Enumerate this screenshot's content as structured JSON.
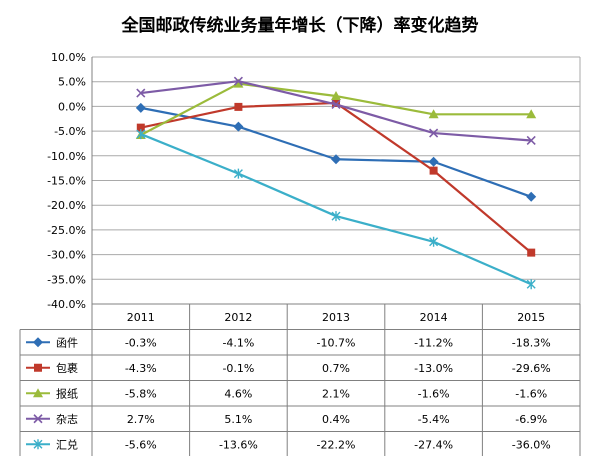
{
  "chart_data": {
    "type": "line",
    "title": "全国邮政传统业务量年增长（下降）率变化趋势",
    "categories": [
      "2011",
      "2012",
      "2013",
      "2014",
      "2015"
    ],
    "y_ticks": [
      "10.0%",
      "5.0%",
      "0.0%",
      "-5.0%",
      "-10.0%",
      "-15.0%",
      "-20.0%",
      "-25.0%",
      "-30.0%",
      "-35.0%",
      "-40.0%"
    ],
    "ylim": [
      -40,
      10
    ],
    "grid": true,
    "legend": "data-table-left",
    "series": [
      {
        "name": "函件",
        "color": "#2E6EB5",
        "marker": "diamond",
        "values": [
          -0.3,
          -4.1,
          -10.7,
          -11.2,
          -18.3
        ],
        "labels": [
          "-0.3%",
          "-4.1%",
          "-10.7%",
          "-11.2%",
          "-18.3%"
        ]
      },
      {
        "name": "包裹",
        "color": "#C0392B",
        "marker": "square",
        "values": [
          -4.3,
          -0.1,
          0.7,
          -13.0,
          -29.6
        ],
        "labels": [
          "-4.3%",
          "-0.1%",
          "0.7%",
          "-13.0%",
          "-29.6%"
        ]
      },
      {
        "name": "报纸",
        "color": "#9BBB3B",
        "marker": "triangle",
        "values": [
          -5.8,
          4.6,
          2.1,
          -1.6,
          -1.6
        ],
        "labels": [
          "-5.8%",
          "4.6%",
          "2.1%",
          "-1.6%",
          "-1.6%"
        ]
      },
      {
        "name": "杂志",
        "color": "#7D5BA6",
        "marker": "x",
        "values": [
          2.7,
          5.1,
          0.4,
          -5.4,
          -6.9
        ],
        "labels": [
          "2.7%",
          "5.1%",
          "0.4%",
          "-5.4%",
          "-6.9%"
        ]
      },
      {
        "name": "汇兑",
        "color": "#3BAFC9",
        "marker": "star",
        "values": [
          -5.6,
          -13.6,
          -22.2,
          -27.4,
          -36.0
        ],
        "labels": [
          "-5.6%",
          "-13.6%",
          "-22.2%",
          "-27.4%",
          "-36.0%"
        ]
      }
    ]
  }
}
